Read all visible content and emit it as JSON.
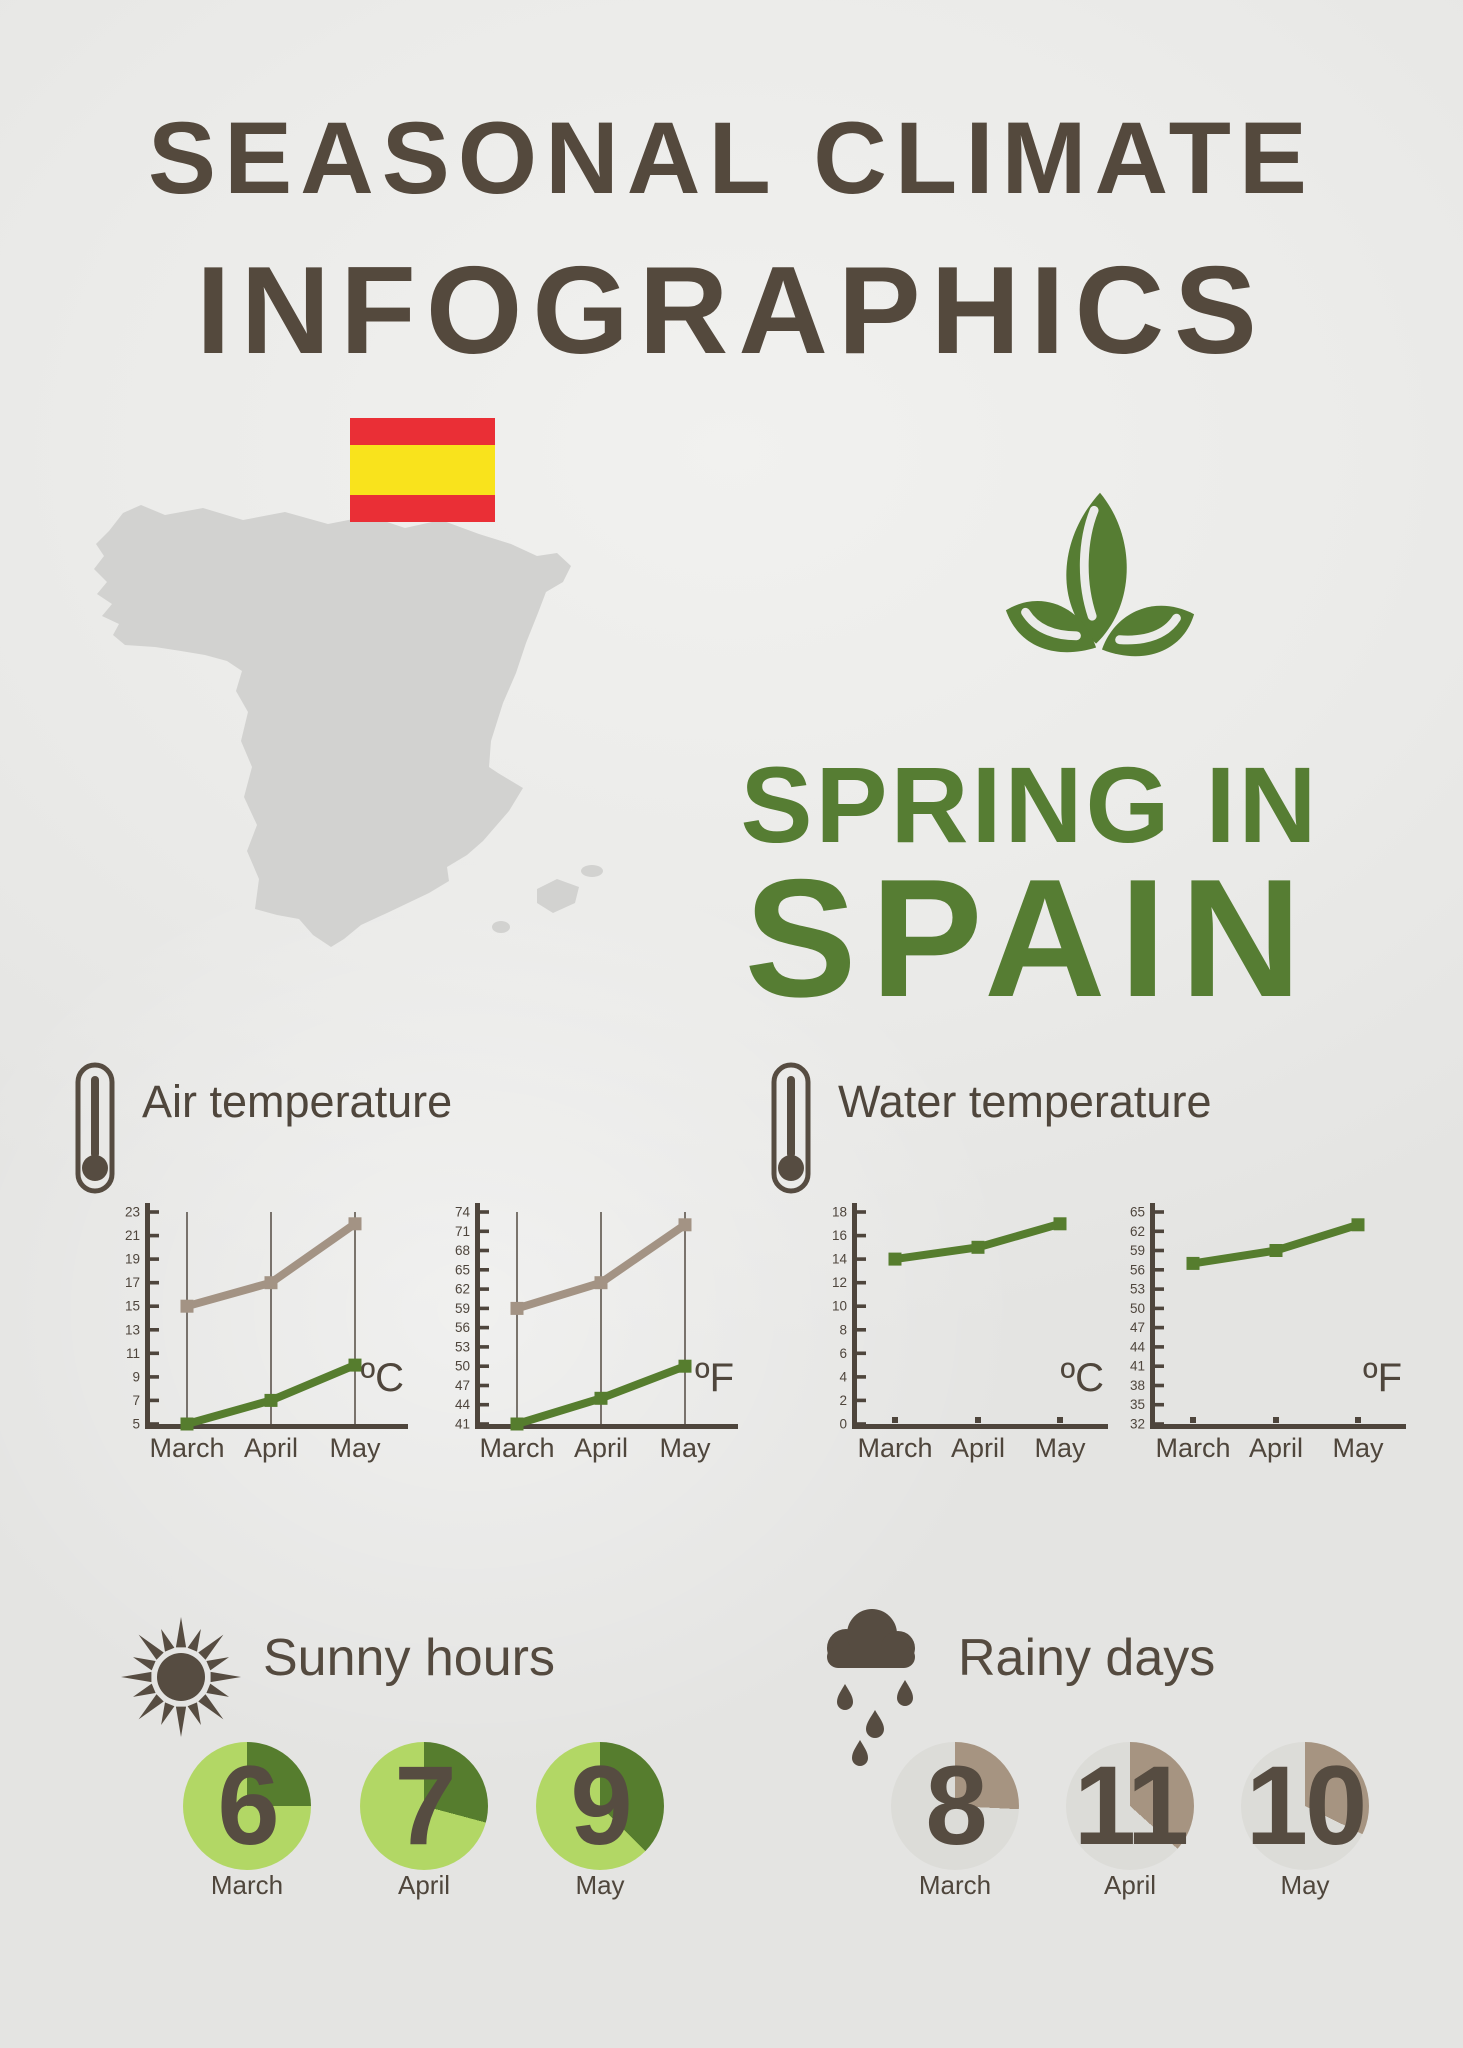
{
  "page": {
    "title_line1": "SEASONAL CLIMATE",
    "title_line2": "INFOGRAPHICS",
    "season_title": "SPRING IN",
    "country": "SPAIN"
  },
  "sections": {
    "air": {
      "title": "Air temperature"
    },
    "water": {
      "title": "Water temperature"
    },
    "sunny": {
      "title": "Sunny hours"
    },
    "rainy": {
      "title": "Rainy days"
    }
  },
  "colors": {
    "background": "#ebebe9",
    "title_brown": "#54493d",
    "text_brown": "#4f463c",
    "icon_brown": "#564c41",
    "green": "#567d33",
    "light_green": "#b2d765",
    "dark_green": "#567d2e",
    "taupe_line": "#a39384",
    "map_gray": "#d2d2d0",
    "flag_red": "#ea2f36",
    "flag_yellow": "#f9e31c",
    "pie_gray": "#dcdcd8",
    "pie_taupe": "#a69481",
    "axis": "#4e453c"
  },
  "chart_data": [
    {
      "id": "air-temp-c",
      "type": "line",
      "title": "Air temperature (ºC)",
      "unit": "ºC",
      "categories": [
        "March",
        "April",
        "May"
      ],
      "ylim": [
        5,
        23
      ],
      "ytick_step": 2,
      "month_gridlines": true,
      "legend": "none",
      "series": [
        {
          "name": "day-high",
          "color": "#a39384",
          "values": [
            15,
            17,
            22
          ]
        },
        {
          "name": "night-low",
          "color": "#567d2e",
          "values": [
            5,
            7,
            10
          ]
        }
      ]
    },
    {
      "id": "air-temp-f",
      "type": "line",
      "title": "Air temperature (ºF)",
      "unit": "ºF",
      "categories": [
        "March",
        "April",
        "May"
      ],
      "ylim": [
        41,
        74
      ],
      "ytick_step": 3,
      "month_gridlines": true,
      "legend": "none",
      "series": [
        {
          "name": "day-high",
          "color": "#a39384",
          "values": [
            59,
            63,
            72
          ]
        },
        {
          "name": "night-low",
          "color": "#567d2e",
          "values": [
            41,
            45,
            50
          ]
        }
      ]
    },
    {
      "id": "water-temp-c",
      "type": "line",
      "title": "Water temperature (ºC)",
      "unit": "ºC",
      "categories": [
        "March",
        "April",
        "May"
      ],
      "ylim": [
        0,
        18
      ],
      "ytick_step": 2,
      "month_gridlines": false,
      "legend": "none",
      "series": [
        {
          "name": "water",
          "color": "#567d2e",
          "values": [
            14,
            15,
            17
          ]
        }
      ]
    },
    {
      "id": "water-temp-f",
      "type": "line",
      "title": "Water temperature (ºF)",
      "unit": "ºF",
      "categories": [
        "March",
        "April",
        "May"
      ],
      "ylim": [
        32,
        65
      ],
      "ytick_step": 3,
      "month_gridlines": false,
      "legend": "none",
      "series": [
        {
          "name": "water",
          "color": "#567d2e",
          "values": [
            57,
            59,
            63
          ]
        }
      ]
    },
    {
      "id": "sunny-hours",
      "type": "pie",
      "title": "Sunny hours",
      "unit": "hours",
      "slice_color": "#567d2e",
      "base_color": "#b2d765",
      "items": [
        {
          "month": "March",
          "value": 6,
          "total": 24
        },
        {
          "month": "April",
          "value": 7,
          "total": 24
        },
        {
          "month": "May",
          "value": 9,
          "total": 24
        }
      ]
    },
    {
      "id": "rainy-days",
      "type": "pie",
      "title": "Rainy days",
      "unit": "days",
      "slice_color": "#a69481",
      "base_color": "#dcdcd8",
      "items": [
        {
          "month": "March",
          "value": 8,
          "total": 31
        },
        {
          "month": "April",
          "value": 11,
          "total": 30
        },
        {
          "month": "May",
          "value": 10,
          "total": 31
        }
      ]
    }
  ]
}
